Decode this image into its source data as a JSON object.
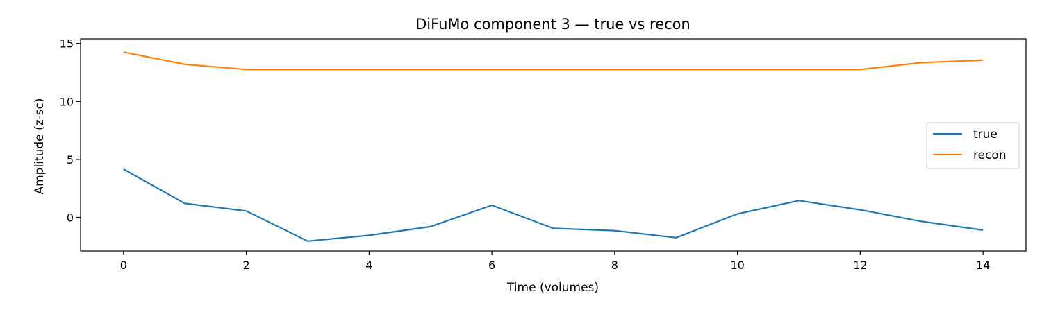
{
  "chart_data": {
    "type": "line",
    "title": "DiFuMo component 3 — true vs recon",
    "xlabel": "Time (volumes)",
    "ylabel": "Amplitude (z-sc)",
    "x": [
      0,
      1,
      2,
      3,
      4,
      5,
      6,
      7,
      8,
      9,
      10,
      11,
      12,
      13,
      14
    ],
    "xlim": [
      -0.7,
      14.7
    ],
    "ylim": [
      -2.9,
      15.4
    ],
    "xticks": [
      0,
      2,
      4,
      6,
      8,
      10,
      12,
      14
    ],
    "yticks": [
      0,
      5,
      10,
      15
    ],
    "grid": false,
    "legend_position": "center-right",
    "series": [
      {
        "name": "true",
        "color": "#1f77b4",
        "values": [
          4.15,
          1.2,
          0.55,
          -2.05,
          -1.55,
          -0.8,
          1.05,
          -0.95,
          -1.15,
          -1.75,
          0.3,
          1.45,
          0.65,
          -0.35,
          -1.1
        ]
      },
      {
        "name": "recon",
        "color": "#ff7f0e",
        "values": [
          14.25,
          13.2,
          12.75,
          12.75,
          12.75,
          12.75,
          12.75,
          12.75,
          12.75,
          12.75,
          12.75,
          12.75,
          12.75,
          13.35,
          13.55
        ]
      }
    ]
  }
}
